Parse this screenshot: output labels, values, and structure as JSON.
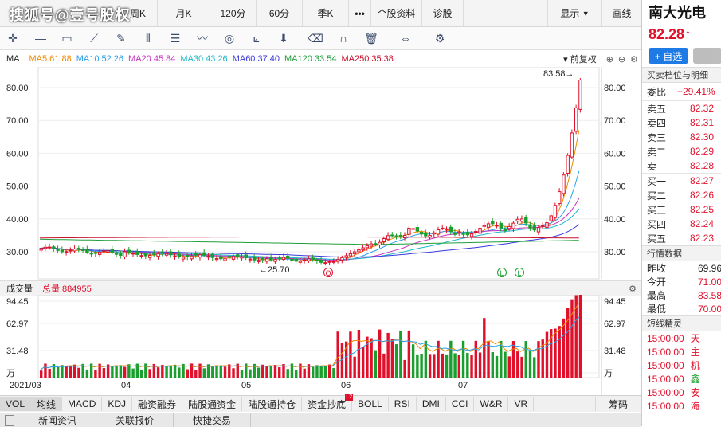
{
  "watermark": "搜狐号@壹号股权",
  "period_tabs": [
    {
      "label": "周K",
      "left": 0,
      "w": 198,
      "active": false
    },
    {
      "label": "月K",
      "w": 66
    },
    {
      "label": "120分",
      "w": 58
    },
    {
      "label": "60分",
      "w": 58
    },
    {
      "label": "季K",
      "w": 58
    },
    {
      "label": "•••",
      "w": 28
    },
    {
      "label": "个股资料",
      "w": 60
    },
    {
      "label": "诊股",
      "w": 50
    }
  ],
  "top_right": {
    "show": "显示",
    "draw": "画线"
  },
  "toolbar_icons": [
    "move-icon",
    "line-icon",
    "rect-icon",
    "fan-icon",
    "pencil-icon",
    "bars-icon",
    "list-icon",
    "wave-icon",
    "cycle-icon",
    "fib-icon",
    "arrow-down-icon",
    "eraser-icon",
    "magnet-icon",
    "trash-icon",
    "expand-icon",
    "settings-icon"
  ],
  "ma": {
    "label": "MA",
    "items": [
      {
        "text": "MA5:61.88",
        "color": "#f08a00"
      },
      {
        "text": "MA10:52.26",
        "color": "#2aa0e8"
      },
      {
        "text": "MA20:45.84",
        "color": "#c82fbf"
      },
      {
        "text": "MA30:43.26",
        "color": "#1fb8c8"
      },
      {
        "text": "MA60:37.40",
        "color": "#3a3adc"
      },
      {
        "text": "MA120:33.54",
        "color": "#1e9e3a"
      },
      {
        "text": "MA250:35.38",
        "color": "#c8102e"
      }
    ],
    "adjust": "前复权"
  },
  "chart_data": {
    "type": "candlestick",
    "price_axis": [
      80,
      70,
      60,
      50,
      40,
      30
    ],
    "price_labels": [
      "80.00",
      "70.00",
      "60.00",
      "50.00",
      "40.00",
      "30.00"
    ],
    "high_marker": "83.58→",
    "low_marker": "←25.70",
    "x_labels": [
      "2021/03",
      "04",
      "05",
      "06",
      "07"
    ],
    "volume_axis_labels": [
      "94.45",
      "62.97",
      "31.48",
      "万"
    ],
    "volume_title": "成交量",
    "volume_total": "总量:884955",
    "markers": [
      "Q",
      "L",
      "L"
    ]
  },
  "indicators": [
    {
      "label": "VOL",
      "active": true
    },
    {
      "label": "均线",
      "active": true
    },
    {
      "label": "MACD"
    },
    {
      "label": "KDJ"
    },
    {
      "label": "融资融券"
    },
    {
      "label": "陆股通资金"
    },
    {
      "label": "陆股通持仓"
    },
    {
      "label": "资金抄底",
      "badge": "L2"
    },
    {
      "label": "BOLL"
    },
    {
      "label": "RSI"
    },
    {
      "label": "DMI"
    },
    {
      "label": "CCI"
    },
    {
      "label": "W&R"
    },
    {
      "label": "VR"
    }
  ],
  "chip_label": "筹码",
  "bottom_tabs": [
    "新闻资讯",
    "关联报价",
    "快捷交易"
  ],
  "stock": {
    "name": "南大光电",
    "price": "82.28↑",
    "add_fav": "+ 自选"
  },
  "orderbook_title": "买卖档位与明细",
  "webi": {
    "label": "委比",
    "value": "+29.41%"
  },
  "asks": [
    {
      "label": "卖五",
      "price": "82.32"
    },
    {
      "label": "卖四",
      "price": "82.31"
    },
    {
      "label": "卖三",
      "price": "82.30"
    },
    {
      "label": "卖二",
      "price": "82.29"
    },
    {
      "label": "卖一",
      "price": "82.28"
    }
  ],
  "bids": [
    {
      "label": "买一",
      "price": "82.27"
    },
    {
      "label": "买二",
      "price": "82.26"
    },
    {
      "label": "买三",
      "price": "82.25"
    },
    {
      "label": "买四",
      "price": "82.24"
    },
    {
      "label": "买五",
      "price": "82.23"
    }
  ],
  "quote_title": "行情数据",
  "quotes": [
    {
      "label": "昨收",
      "value": "69.96",
      "color": "#222"
    },
    {
      "label": "今开",
      "value": "71.00",
      "color": "#e0102b"
    },
    {
      "label": "最高",
      "value": "83.58",
      "color": "#e0102b"
    },
    {
      "label": "最低",
      "value": "70.00",
      "color": "#e0102b"
    }
  ],
  "elves_title": "短线精灵",
  "elves": [
    {
      "time": "15:00:00",
      "tag": "天",
      "color": "#e0102b"
    },
    {
      "time": "15:00:00",
      "tag": "主",
      "color": "#e0102b"
    },
    {
      "time": "15:00:00",
      "tag": "机",
      "color": "#e0102b"
    },
    {
      "time": "15:00:00",
      "tag": "鑫",
      "color": "#1a9e2d"
    },
    {
      "time": "15:00:00",
      "tag": "安",
      "color": "#e0102b"
    },
    {
      "time": "15:00:00",
      "tag": "海",
      "color": "#e0102b"
    }
  ]
}
